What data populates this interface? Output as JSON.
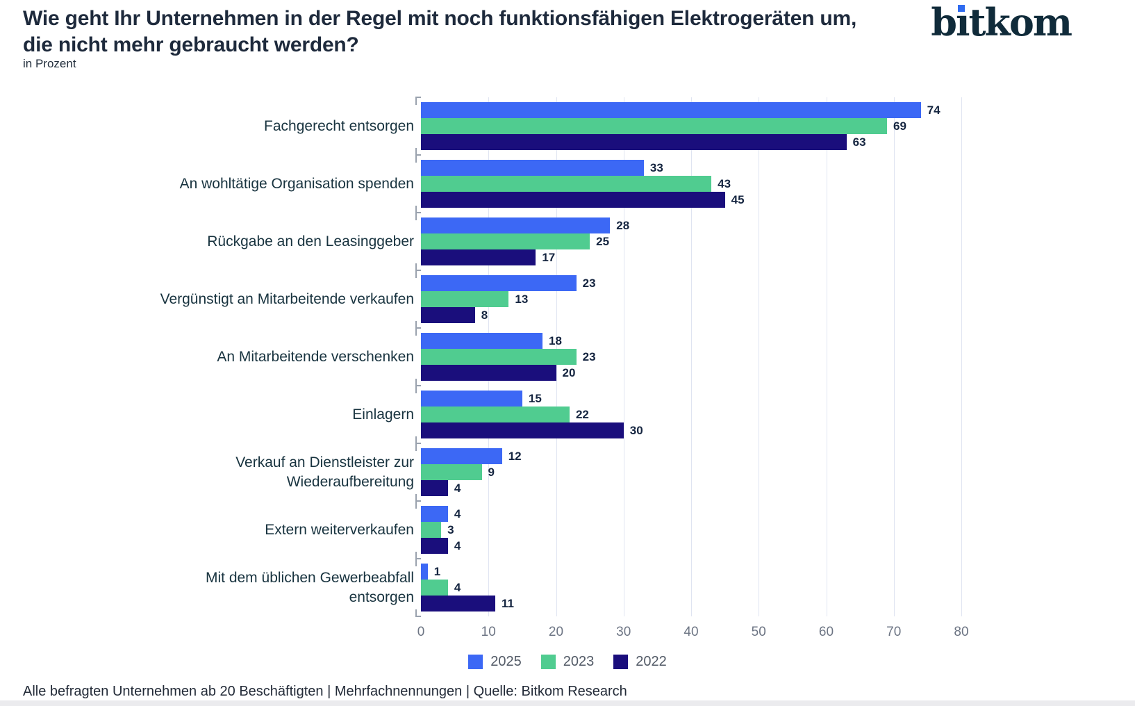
{
  "header": {
    "title": "Wie geht Ihr Unternehmen in der Regel mit noch funktionsfähigen Elektrogeräten um,\ndie nicht mehr gebraucht werden?",
    "subtitle": "in Prozent",
    "logo": {
      "text": "bitkom",
      "color": "#102b3a",
      "dot_color": "#2f6bf0"
    }
  },
  "chart_data": {
    "type": "bar",
    "orientation": "horizontal",
    "unit": "Prozent",
    "categories": [
      "Fachgerecht entsorgen",
      "An wohltätige Organisation spenden",
      "Rückgabe an den Leasinggeber",
      "Vergünstigt an Mitarbeitende verkaufen",
      "An Mitarbeitende verschenken",
      "Einlagern",
      "Verkauf an Dienstleister zur Wiederaufbereitung",
      "Extern weiterverkaufen",
      "Mit dem üblichen Gewerbeabfall entsorgen"
    ],
    "series": [
      {
        "name": "2025",
        "color": "#3c68f5",
        "values": [
          74,
          33,
          28,
          23,
          18,
          15,
          12,
          4,
          1
        ]
      },
      {
        "name": "2023",
        "color": "#50cc90",
        "values": [
          69,
          43,
          25,
          13,
          23,
          22,
          9,
          3,
          4
        ]
      },
      {
        "name": "2022",
        "color": "#1a0e7c",
        "values": [
          63,
          45,
          17,
          8,
          20,
          30,
          4,
          4,
          11
        ]
      }
    ],
    "xlim": [
      0,
      80
    ],
    "xticks": [
      0,
      10,
      20,
      30,
      40,
      50,
      60,
      70,
      80
    ],
    "grid": "vertical",
    "legend_position": "bottom-center"
  },
  "footer": {
    "note": "Alle befragten Unternehmen ab 20 Beschäftigten | Mehrfachnennungen | Quelle: Bitkom Research"
  }
}
